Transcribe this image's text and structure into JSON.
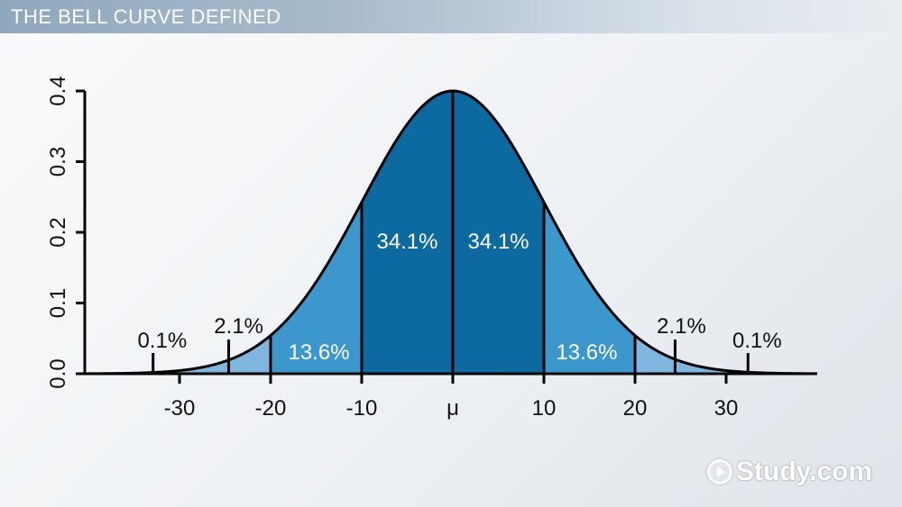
{
  "header": {
    "title": "THE BELL CURVE DEFINED"
  },
  "brand": {
    "logo_text": "Study.com",
    "logo_icon": "play-circle-icon"
  },
  "colors": {
    "core": "#0c6aa0",
    "mid": "#3c97cc",
    "outer": "#7eb6df",
    "tail": "#a9cbe8",
    "curve": "#000000"
  },
  "chart_data": {
    "type": "area",
    "title": "",
    "xlabel": "",
    "ylabel": "",
    "mean": 0,
    "sd": 10,
    "xlim": [
      -40,
      40
    ],
    "ylim": [
      0,
      0.4
    ],
    "x_ticks": [
      {
        "value": -30,
        "label": "-30"
      },
      {
        "value": -20,
        "label": "-20"
      },
      {
        "value": -10,
        "label": "-10"
      },
      {
        "value": 0,
        "label": "μ"
      },
      {
        "value": 10,
        "label": "10"
      },
      {
        "value": 20,
        "label": "20"
      },
      {
        "value": 30,
        "label": "30"
      }
    ],
    "y_ticks": [
      {
        "value": 0,
        "label": "0.0"
      },
      {
        "value": 0.1,
        "label": "0.1"
      },
      {
        "value": 0.2,
        "label": "0.2"
      },
      {
        "value": 0.3,
        "label": "0.3"
      },
      {
        "value": 0.4,
        "label": "0.4"
      }
    ],
    "regions": [
      {
        "from": -10,
        "to": 0,
        "percent": "34.1%",
        "shade": "core"
      },
      {
        "from": 0,
        "to": 10,
        "percent": "34.1%",
        "shade": "core"
      },
      {
        "from": -20,
        "to": -10,
        "percent": "13.6%",
        "shade": "mid"
      },
      {
        "from": 10,
        "to": 20,
        "percent": "13.6%",
        "shade": "mid"
      },
      {
        "from": -30,
        "to": -20,
        "percent": "2.1%",
        "shade": "outer"
      },
      {
        "from": 20,
        "to": 30,
        "percent": "2.1%",
        "shade": "outer"
      },
      {
        "from": -40,
        "to": -30,
        "percent": "0.1%",
        "shade": "tail"
      },
      {
        "from": 30,
        "to": 40,
        "percent": "0.1%",
        "shade": "tail"
      }
    ],
    "grid": false,
    "legend": "none"
  }
}
